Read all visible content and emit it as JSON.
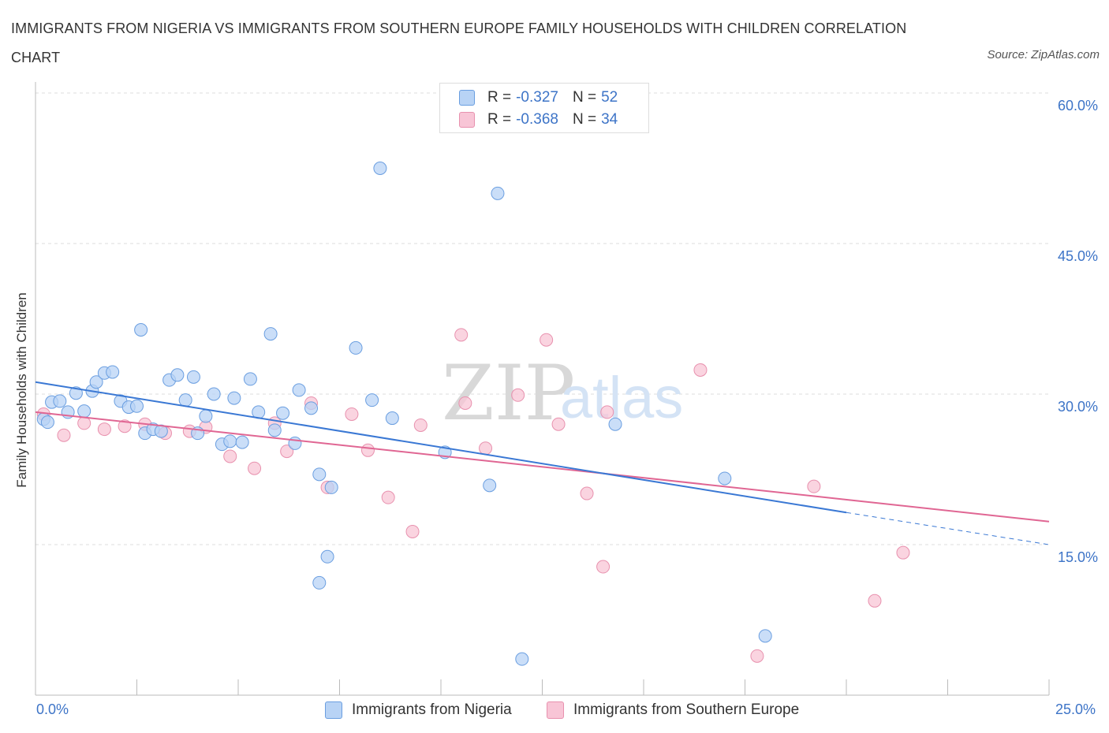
{
  "title": "IMMIGRANTS FROM NIGERIA VS IMMIGRANTS FROM SOUTHERN EUROPE FAMILY HOUSEHOLDS WITH CHILDREN CORRELATION CHART",
  "source": "Source: ZipAtlas.com",
  "watermark": {
    "zip": "ZIP",
    "atlas": "atlas"
  },
  "legend_top": [
    {
      "r_label": "R =",
      "r_value": "-0.327",
      "n_label": "N =",
      "n_value": "52"
    },
    {
      "r_label": "R =",
      "r_value": "-0.368",
      "n_label": "N =",
      "n_value": "34"
    }
  ],
  "colors": {
    "nigeria_fill": "#b8d3f5",
    "nigeria_stroke": "#6a9ee0",
    "nigeria_line": "#3a78d4",
    "seurope_fill": "#f8c5d6",
    "seurope_stroke": "#e891ae",
    "seurope_line": "#e06693",
    "axis_text": "#3d74c7",
    "grid": "#dddddd"
  },
  "chart_data": {
    "type": "scatter",
    "title": "IMMIGRANTS FROM NIGERIA VS IMMIGRANTS FROM SOUTHERN EUROPE FAMILY HOUSEHOLDS WITH CHILDREN CORRELATION CHART",
    "xlabel": "",
    "ylabel": "Family Households with Children",
    "xlim": [
      0,
      25
    ],
    "ylim": [
      0,
      60
    ],
    "x_tick_labels": [
      "0.0%",
      "25.0%"
    ],
    "y_ticks": [
      15,
      30,
      45,
      60
    ],
    "y_tick_labels": [
      "15.0%",
      "30.0%",
      "45.0%",
      "60.0%"
    ],
    "grid": true,
    "legend_position": "bottom",
    "series": [
      {
        "name": "Immigrants from Nigeria",
        "points": [
          [
            0.2,
            27.5
          ],
          [
            0.3,
            27.2
          ],
          [
            0.4,
            29.2
          ],
          [
            0.6,
            29.3
          ],
          [
            0.8,
            28.2
          ],
          [
            1.0,
            30.1
          ],
          [
            1.2,
            28.3
          ],
          [
            1.4,
            30.3
          ],
          [
            1.5,
            31.2
          ],
          [
            1.7,
            32.1
          ],
          [
            1.9,
            32.2
          ],
          [
            2.1,
            29.3
          ],
          [
            2.3,
            28.7
          ],
          [
            2.5,
            28.8
          ],
          [
            2.6,
            36.4
          ],
          [
            2.7,
            26.1
          ],
          [
            2.9,
            26.5
          ],
          [
            3.1,
            26.3
          ],
          [
            3.3,
            31.4
          ],
          [
            3.5,
            31.9
          ],
          [
            3.7,
            29.4
          ],
          [
            3.9,
            31.7
          ],
          [
            4.0,
            26.1
          ],
          [
            4.2,
            27.8
          ],
          [
            4.4,
            30.0
          ],
          [
            4.6,
            25.0
          ],
          [
            4.8,
            25.3
          ],
          [
            4.9,
            29.6
          ],
          [
            5.1,
            25.2
          ],
          [
            5.3,
            31.5
          ],
          [
            5.5,
            28.2
          ],
          [
            5.8,
            36.0
          ],
          [
            5.9,
            26.4
          ],
          [
            6.1,
            28.1
          ],
          [
            6.4,
            25.1
          ],
          [
            6.5,
            30.4
          ],
          [
            6.8,
            28.6
          ],
          [
            7.0,
            22.0
          ],
          [
            7.2,
            13.8
          ],
          [
            7.3,
            20.7
          ],
          [
            7.0,
            11.2
          ],
          [
            7.9,
            34.6
          ],
          [
            8.3,
            29.4
          ],
          [
            8.5,
            52.5
          ],
          [
            8.8,
            27.6
          ],
          [
            10.1,
            24.2
          ],
          [
            11.2,
            20.9
          ],
          [
            11.4,
            50.0
          ],
          [
            12.0,
            3.6
          ],
          [
            14.3,
            27.0
          ],
          [
            17.0,
            21.6
          ],
          [
            18.0,
            5.9
          ]
        ]
      },
      {
        "name": "Immigrants from Southern Europe",
        "points": [
          [
            0.2,
            28.0
          ],
          [
            0.7,
            25.9
          ],
          [
            1.2,
            27.1
          ],
          [
            1.7,
            26.5
          ],
          [
            2.2,
            26.8
          ],
          [
            2.7,
            27.0
          ],
          [
            3.2,
            26.1
          ],
          [
            3.8,
            26.3
          ],
          [
            4.2,
            26.7
          ],
          [
            4.8,
            23.8
          ],
          [
            5.4,
            22.6
          ],
          [
            5.9,
            27.1
          ],
          [
            6.2,
            24.3
          ],
          [
            6.8,
            29.1
          ],
          [
            7.2,
            20.7
          ],
          [
            7.8,
            28.0
          ],
          [
            8.2,
            24.4
          ],
          [
            8.7,
            19.7
          ],
          [
            9.3,
            16.3
          ],
          [
            9.5,
            26.9
          ],
          [
            10.5,
            35.9
          ],
          [
            10.6,
            29.1
          ],
          [
            11.1,
            24.6
          ],
          [
            11.9,
            29.9
          ],
          [
            12.6,
            35.4
          ],
          [
            12.9,
            27.0
          ],
          [
            13.6,
            20.1
          ],
          [
            14.0,
            12.8
          ],
          [
            14.1,
            28.2
          ],
          [
            16.4,
            32.4
          ],
          [
            17.8,
            3.9
          ],
          [
            19.2,
            20.8
          ],
          [
            20.7,
            9.4
          ],
          [
            21.4,
            14.2
          ]
        ]
      }
    ],
    "trend_lines": [
      {
        "name": "Immigrants from Nigeria",
        "x": [
          0,
          20.0
        ],
        "y": [
          31.2,
          18.2
        ],
        "dashed_to_x": 25,
        "dashed_to_y": 15.0
      },
      {
        "name": "Immigrants from Southern Europe",
        "x": [
          0,
          25
        ],
        "y": [
          28.2,
          17.3
        ]
      }
    ]
  }
}
